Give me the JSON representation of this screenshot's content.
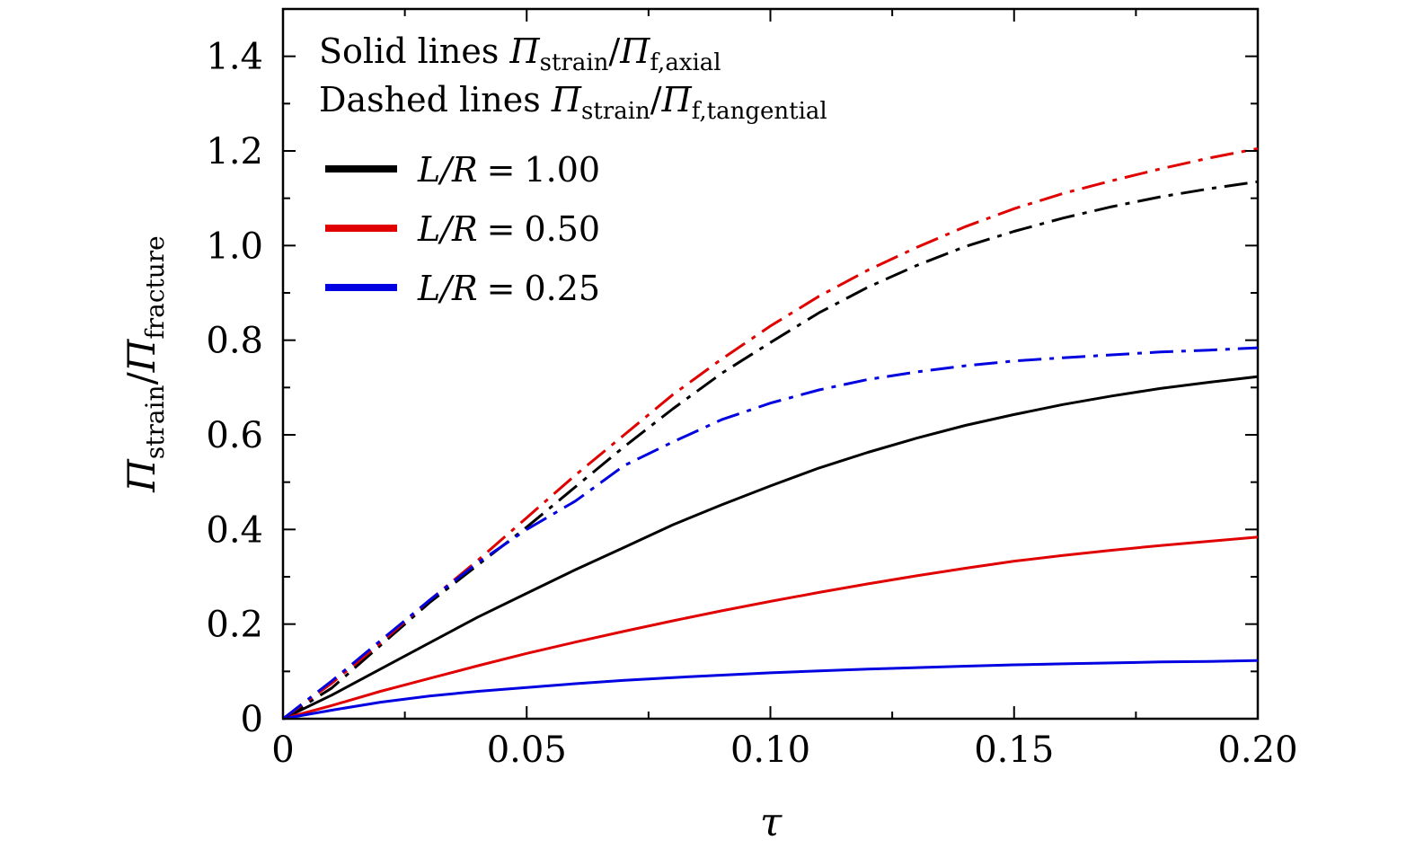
{
  "chart_data": {
    "type": "line",
    "title": "",
    "xlabel": "τ",
    "ylabel": "Π_strain/Π_fracture",
    "ylabel_parts": {
      "main": "Π",
      "sub1": "strain",
      "slash": "/",
      "main2": "Π",
      "sub2": "fracture"
    },
    "xlim": [
      0,
      0.2
    ],
    "ylim": [
      0,
      1.5
    ],
    "xticks": [
      0,
      0.05,
      0.1,
      0.15,
      0.2
    ],
    "xtick_labels": [
      "0",
      "0.05",
      "0.10",
      "0.15",
      "0.20"
    ],
    "yticks": [
      0,
      0.2,
      0.4,
      0.6,
      0.8,
      1.0,
      1.2,
      1.4
    ],
    "ytick_labels": [
      "0",
      "0.2",
      "0.4",
      "0.6",
      "0.8",
      "1.0",
      "1.2",
      "1.4"
    ],
    "grid": false,
    "annotations": [
      {
        "prefix": "Solid lines ",
        "main": "Π",
        "sub": "strain",
        "slash": "/",
        "main2": "Π",
        "sub2": "f,axial"
      },
      {
        "prefix": "Dashed lines ",
        "main": "Π",
        "sub": "strain",
        "slash": "/",
        "main2": "Π",
        "sub2": "f,tangential"
      }
    ],
    "legend": [
      {
        "label": "L/R = 1.00",
        "lhs": "L/R",
        "eq": "=",
        "val": "1.00",
        "color": "#000000"
      },
      {
        "label": "L/R = 0.50",
        "lhs": "L/R",
        "eq": "=",
        "val": "0.50",
        "color": "#e00000"
      },
      {
        "label": "L/R = 0.25",
        "lhs": "L/R",
        "eq": "=",
        "val": "0.25",
        "color": "#0000e0"
      }
    ],
    "legend_position": "top-left",
    "x": [
      0,
      0.01,
      0.02,
      0.03,
      0.04,
      0.05,
      0.06,
      0.07,
      0.08,
      0.09,
      0.1,
      0.11,
      0.12,
      0.13,
      0.14,
      0.15,
      0.16,
      0.17,
      0.18,
      0.19,
      0.2
    ],
    "series": [
      {
        "name": "L/R=1.00 axial",
        "style": "solid",
        "color": "#000000",
        "values": [
          0,
          0.05,
          0.105,
          0.16,
          0.215,
          0.265,
          0.315,
          0.362,
          0.41,
          0.452,
          0.492,
          0.53,
          0.563,
          0.593,
          0.62,
          0.643,
          0.664,
          0.682,
          0.698,
          0.711,
          0.723
        ]
      },
      {
        "name": "L/R=0.50 axial",
        "style": "solid",
        "color": "#e00000",
        "values": [
          0,
          0.028,
          0.058,
          0.085,
          0.112,
          0.138,
          0.162,
          0.185,
          0.207,
          0.228,
          0.248,
          0.267,
          0.285,
          0.302,
          0.318,
          0.333,
          0.345,
          0.356,
          0.366,
          0.375,
          0.384
        ]
      },
      {
        "name": "L/R=0.25 axial",
        "style": "solid",
        "color": "#0000e0",
        "values": [
          0,
          0.018,
          0.035,
          0.048,
          0.058,
          0.066,
          0.074,
          0.081,
          0.087,
          0.092,
          0.097,
          0.101,
          0.105,
          0.108,
          0.111,
          0.114,
          0.116,
          0.118,
          0.12,
          0.121,
          0.123
        ]
      },
      {
        "name": "L/R=1.00 tangential",
        "style": "dashdot",
        "color": "#000000",
        "values": [
          0,
          0.065,
          0.155,
          0.245,
          0.325,
          0.405,
          0.49,
          0.575,
          0.655,
          0.73,
          0.795,
          0.858,
          0.912,
          0.958,
          0.998,
          1.03,
          1.058,
          1.082,
          1.103,
          1.12,
          1.135
        ]
      },
      {
        "name": "L/R=0.50 tangential",
        "style": "dashdot",
        "color": "#e00000",
        "values": [
          0,
          0.075,
          0.16,
          0.25,
          0.335,
          0.425,
          0.515,
          0.6,
          0.685,
          0.76,
          0.83,
          0.893,
          0.948,
          0.996,
          1.04,
          1.078,
          1.11,
          1.137,
          1.162,
          1.185,
          1.205
        ]
      },
      {
        "name": "L/R=0.25 tangential",
        "style": "dashdot",
        "color": "#0000e0",
        "values": [
          0,
          0.08,
          0.165,
          0.25,
          0.33,
          0.4,
          0.46,
          0.535,
          0.585,
          0.632,
          0.667,
          0.695,
          0.717,
          0.733,
          0.746,
          0.756,
          0.763,
          0.769,
          0.775,
          0.779,
          0.784
        ]
      }
    ]
  }
}
